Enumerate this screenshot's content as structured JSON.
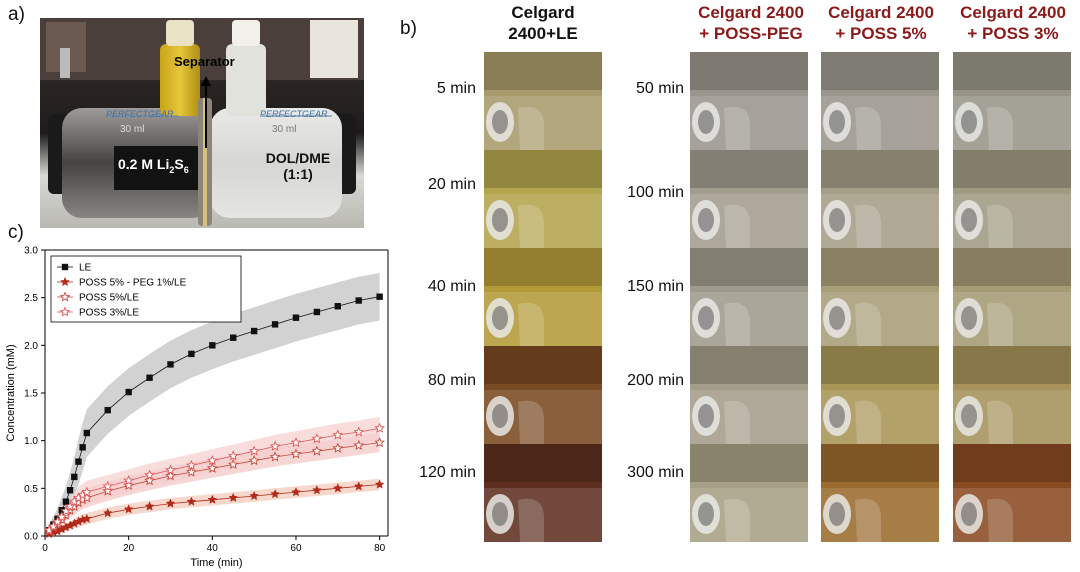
{
  "panels": {
    "a": "a)",
    "b": "b)",
    "c": "c)"
  },
  "photo": {
    "separator_label": "Separator",
    "left_label_main": "0.2 M Li",
    "left_sub1": "2",
    "left_mid": "S",
    "left_sub2": "6",
    "right_label_line1": "DOL/DME",
    "right_label_line2": "(1:1)",
    "brand_left": "PERFECTGEAR",
    "brand_right": "PERFECTGEAR",
    "vol_left": "30 ml",
    "vol_right": "30 ml"
  },
  "panel_b": {
    "col1_header_line1": "Celgard",
    "col1_header_line2": "2400+LE",
    "col2_header_line1": "Celgard 2400",
    "col2_header_line2": "+ POSS-PEG",
    "col3_header_line1": "Celgard 2400",
    "col3_header_line2": "+ POSS 5%",
    "col4_header_line1": "Celgard 2400",
    "col4_header_line2": "+ POSS 3%",
    "times_left": [
      "5 min",
      "20 min",
      "40 min",
      "80 min",
      "120 min"
    ],
    "times_right": [
      "50 min",
      "100 min",
      "150 min",
      "200 min",
      "300 min"
    ],
    "colors": {
      "col1": [
        "#a89a6a",
        "#b3a44e",
        "#b39a38",
        "#7a4a22",
        "#5e2f20"
      ],
      "col2": [
        "#9a958c",
        "#a29c8e",
        "#a09a8c",
        "#a49d8a",
        "#a8a086"
      ],
      "col3": [
        "#9a968c",
        "#a49e88",
        "#a89e78",
        "#a89656",
        "#9a6a2e"
      ],
      "col4": [
        "#989488",
        "#a09a82",
        "#a49a74",
        "#a6925a",
        "#8a4a22"
      ]
    }
  },
  "chart_data": {
    "type": "line",
    "xlabel": "Time (min)",
    "ylabel": "Concentration (mM)",
    "xlim": [
      0,
      82
    ],
    "ylim": [
      0,
      3.0
    ],
    "xticks": [
      0,
      20,
      40,
      60,
      80
    ],
    "yticks": [
      0.0,
      0.5,
      1.0,
      1.5,
      2.0,
      2.5,
      3.0
    ],
    "ytick_labels": [
      "0.0",
      "0.5",
      "1.0",
      "1.5",
      "2.0",
      "2.5",
      "3.0"
    ],
    "legend_position": "top-left",
    "series": [
      {
        "name": "LE",
        "marker": "filled-square",
        "color": "#111111",
        "band_color": "#bfbfbf",
        "x": [
          1,
          2,
          3,
          4,
          5,
          6,
          7,
          8,
          9,
          10,
          15,
          20,
          25,
          30,
          35,
          40,
          45,
          50,
          55,
          60,
          65,
          70,
          75,
          80
        ],
        "y": [
          0.06,
          0.12,
          0.18,
          0.27,
          0.36,
          0.48,
          0.62,
          0.78,
          0.93,
          1.08,
          1.32,
          1.51,
          1.66,
          1.8,
          1.91,
          2.0,
          2.08,
          2.15,
          2.22,
          2.29,
          2.35,
          2.41,
          2.47,
          2.51
        ],
        "band": 0.25
      },
      {
        "name": "POSS 5% - PEG 1%/LE",
        "marker": "filled-star",
        "color": "#b22a1a",
        "band_color": "#f4c8b8",
        "x": [
          1,
          2,
          3,
          4,
          5,
          6,
          7,
          8,
          9,
          10,
          15,
          20,
          25,
          30,
          35,
          40,
          45,
          50,
          55,
          60,
          65,
          70,
          75,
          80
        ],
        "y": [
          0.02,
          0.04,
          0.05,
          0.07,
          0.09,
          0.11,
          0.13,
          0.15,
          0.17,
          0.18,
          0.24,
          0.28,
          0.31,
          0.34,
          0.36,
          0.38,
          0.4,
          0.42,
          0.44,
          0.46,
          0.48,
          0.5,
          0.52,
          0.54
        ],
        "band": 0.06
      },
      {
        "name": "POSS 5%/LE",
        "marker": "open-star",
        "color": "#c84a3a",
        "band_color": "#f3c4c4",
        "x": [
          1,
          2,
          3,
          4,
          5,
          6,
          7,
          8,
          9,
          10,
          15,
          20,
          25,
          30,
          35,
          40,
          45,
          50,
          55,
          60,
          65,
          70,
          75,
          80
        ],
        "y": [
          0.05,
          0.09,
          0.13,
          0.17,
          0.22,
          0.27,
          0.31,
          0.35,
          0.38,
          0.4,
          0.47,
          0.53,
          0.58,
          0.63,
          0.67,
          0.71,
          0.75,
          0.79,
          0.83,
          0.86,
          0.89,
          0.92,
          0.95,
          0.98
        ],
        "band": 0.1
      },
      {
        "name": "POSS 3%/LE",
        "marker": "open-star",
        "color": "#e05a5a",
        "band_color": "#f7cfcf",
        "x": [
          1,
          2,
          3,
          4,
          5,
          6,
          7,
          8,
          9,
          10,
          15,
          20,
          25,
          30,
          35,
          40,
          45,
          50,
          55,
          60,
          65,
          70,
          75,
          80
        ],
        "y": [
          0.06,
          0.1,
          0.15,
          0.2,
          0.26,
          0.31,
          0.36,
          0.4,
          0.43,
          0.46,
          0.52,
          0.58,
          0.64,
          0.69,
          0.74,
          0.79,
          0.84,
          0.89,
          0.94,
          0.98,
          1.02,
          1.06,
          1.09,
          1.13
        ],
        "band": 0.12
      }
    ]
  }
}
